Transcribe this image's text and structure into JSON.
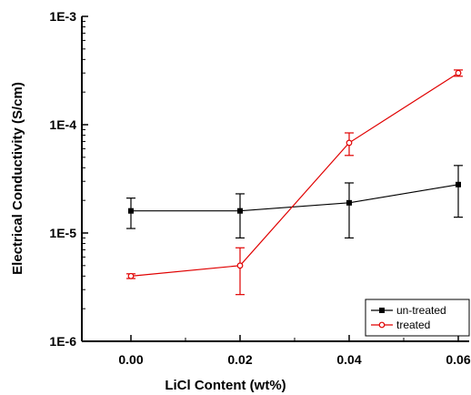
{
  "chart_data": {
    "type": "line",
    "title": "",
    "xlabel": "LiCl Content (wt%)",
    "ylabel": "Electrical Conductivity (S/cm)",
    "y_scale": "log",
    "xlim": [
      -0.009,
      0.062
    ],
    "ylim": [
      1e-06,
      0.001
    ],
    "x_ticks": [
      0.0,
      0.02,
      0.04,
      0.06
    ],
    "x_tick_labels": [
      "0.00",
      "0.02",
      "0.04",
      "0.06"
    ],
    "y_ticks": [
      1e-06,
      1e-05,
      0.0001,
      0.001
    ],
    "y_tick_labels": [
      "1E-6",
      "1E-5",
      "1E-4",
      "1E-3"
    ],
    "grid": false,
    "legend_position": "bottom-right",
    "x": [
      0.0,
      0.02,
      0.04,
      0.06
    ],
    "series": [
      {
        "name": "un-treated",
        "color": "#000000",
        "marker": "filled-square",
        "values": [
          1.6e-05,
          1.6e-05,
          1.9e-05,
          2.8e-05
        ],
        "error_low": [
          1.1e-05,
          9e-06,
          9e-06,
          1.4e-05
        ],
        "error_high": [
          2.1e-05,
          2.3e-05,
          2.9e-05,
          4.2e-05
        ]
      },
      {
        "name": "treated",
        "color": "#e00000",
        "marker": "open-circle",
        "values": [
          4e-06,
          5e-06,
          6.8e-05,
          0.0003
        ],
        "error_low": [
          3.8e-06,
          2.7e-06,
          5.2e-05,
          0.00028
        ],
        "error_high": [
          4.2e-06,
          7.3e-06,
          8.4e-05,
          0.00032
        ]
      }
    ]
  }
}
